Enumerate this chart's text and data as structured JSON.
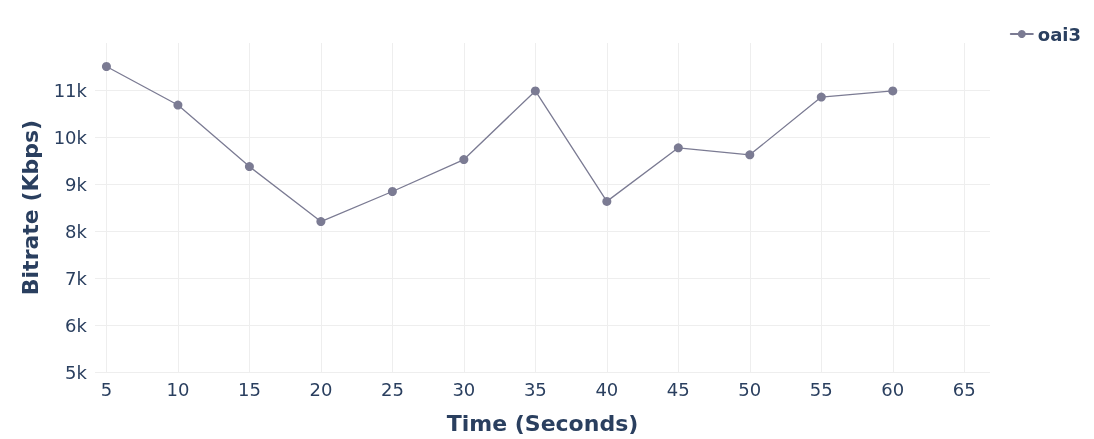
{
  "chart_data": {
    "type": "line",
    "xlabel": "Time (Seconds)",
    "ylabel": "Bitrate (Kbps)",
    "x": [
      5,
      10,
      15,
      20,
      25,
      30,
      35,
      40,
      45,
      50,
      55,
      60
    ],
    "series": [
      {
        "name": "oai3",
        "color": "#7b7b93",
        "values": [
          11500,
          10680,
          9370,
          8200,
          8840,
          9520,
          10980,
          8630,
          9770,
          9620,
          10850,
          10980
        ]
      }
    ],
    "xlim": [
      4.2,
      66.8
    ],
    "xticks": [
      5,
      10,
      15,
      20,
      25,
      30,
      35,
      40,
      45,
      50,
      55,
      60,
      65
    ],
    "ylim": [
      5000,
      12000
    ],
    "yticks": [
      {
        "value": 5000,
        "label": "5k"
      },
      {
        "value": 6000,
        "label": "6k"
      },
      {
        "value": 7000,
        "label": "7k"
      },
      {
        "value": 8000,
        "label": "8k"
      },
      {
        "value": 9000,
        "label": "9k"
      },
      {
        "value": 10000,
        "label": "10k"
      },
      {
        "value": 11000,
        "label": "11k"
      }
    ],
    "grid": true,
    "legend": "top right",
    "marker": "circle",
    "line_style": "solid"
  }
}
